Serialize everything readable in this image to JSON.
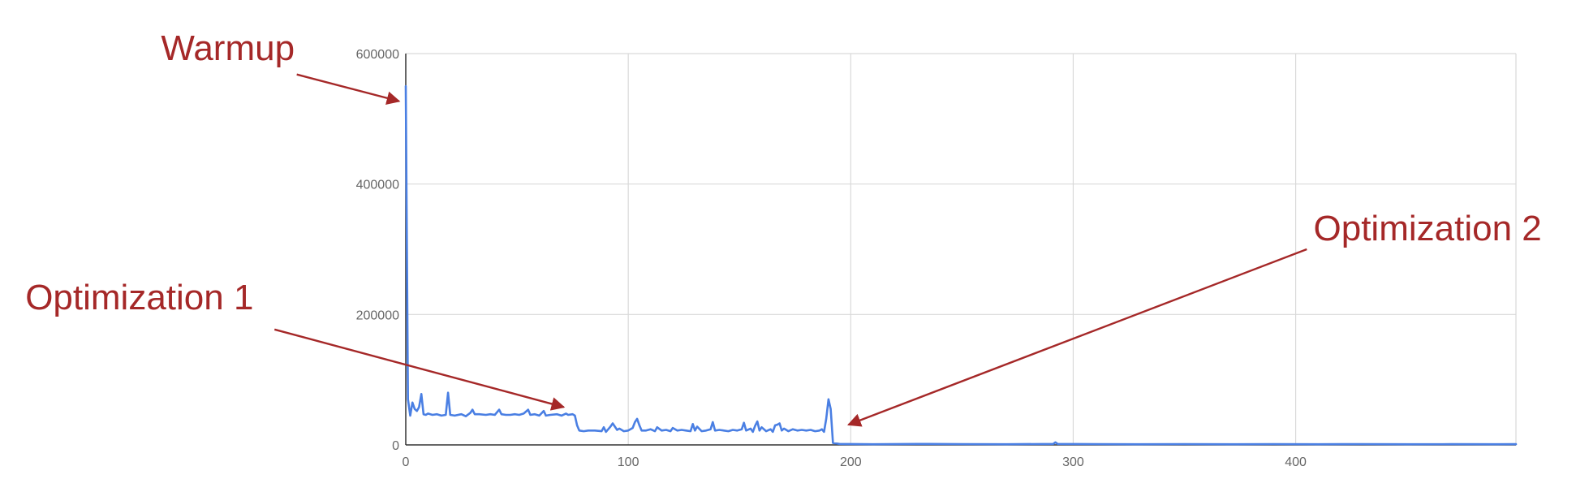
{
  "colors": {
    "series": "#4a7fe3",
    "grid": "#d9d9d9",
    "axis": "#333333",
    "tick_text": "#666666",
    "annotation": "#a52828"
  },
  "chart_data": {
    "type": "line",
    "title": "",
    "xlabel": "",
    "ylabel": "",
    "grid": true,
    "legend": "none",
    "xlim": [
      0,
      499
    ],
    "ylim": [
      0,
      600000
    ],
    "x_ticks": [
      "0",
      "100",
      "200",
      "300",
      "400"
    ],
    "y_ticks": [
      "0",
      "200000",
      "400000",
      "600000"
    ],
    "series": [
      {
        "points": [
          [
            0,
            550000
          ],
          [
            1,
            70000
          ],
          [
            2,
            45000
          ],
          [
            3,
            65000
          ],
          [
            4,
            55000
          ],
          [
            5,
            52000
          ],
          [
            6,
            58000
          ],
          [
            7,
            78000
          ],
          [
            8,
            47000
          ],
          [
            9,
            46000
          ],
          [
            10,
            48000
          ],
          [
            12,
            46000
          ],
          [
            14,
            47000
          ],
          [
            16,
            45000
          ],
          [
            18,
            46000
          ],
          [
            19,
            80000
          ],
          [
            20,
            46000
          ],
          [
            22,
            45000
          ],
          [
            25,
            47000
          ],
          [
            27,
            44000
          ],
          [
            29,
            49000
          ],
          [
            30,
            54000
          ],
          [
            31,
            47000
          ],
          [
            33,
            47000
          ],
          [
            36,
            46000
          ],
          [
            38,
            47000
          ],
          [
            40,
            46000
          ],
          [
            42,
            54000
          ],
          [
            43,
            47000
          ],
          [
            45,
            46000
          ],
          [
            47,
            46000
          ],
          [
            49,
            47000
          ],
          [
            51,
            46000
          ],
          [
            53,
            48000
          ],
          [
            55,
            54000
          ],
          [
            56,
            46000
          ],
          [
            58,
            47000
          ],
          [
            60,
            45000
          ],
          [
            62,
            52000
          ],
          [
            63,
            45000
          ],
          [
            65,
            46000
          ],
          [
            68,
            47000
          ],
          [
            70,
            45000
          ],
          [
            72,
            48000
          ],
          [
            73,
            46000
          ],
          [
            75,
            47000
          ],
          [
            76,
            45000
          ],
          [
            77,
            30000
          ],
          [
            78,
            22000
          ],
          [
            80,
            21000
          ],
          [
            82,
            22000
          ],
          [
            85,
            22000
          ],
          [
            88,
            21000
          ],
          [
            89,
            27000
          ],
          [
            90,
            20000
          ],
          [
            91,
            24000
          ],
          [
            92,
            28000
          ],
          [
            93,
            33000
          ],
          [
            95,
            23000
          ],
          [
            96,
            25000
          ],
          [
            98,
            21000
          ],
          [
            100,
            22000
          ],
          [
            102,
            26000
          ],
          [
            103,
            35000
          ],
          [
            104,
            40000
          ],
          [
            105,
            30000
          ],
          [
            106,
            22000
          ],
          [
            108,
            22000
          ],
          [
            110,
            24000
          ],
          [
            112,
            21000
          ],
          [
            113,
            27000
          ],
          [
            115,
            22000
          ],
          [
            117,
            23000
          ],
          [
            119,
            21000
          ],
          [
            120,
            26000
          ],
          [
            122,
            22000
          ],
          [
            124,
            23000
          ],
          [
            126,
            22000
          ],
          [
            128,
            21000
          ],
          [
            129,
            32000
          ],
          [
            130,
            22000
          ],
          [
            131,
            28000
          ],
          [
            133,
            21000
          ],
          [
            135,
            22000
          ],
          [
            137,
            24000
          ],
          [
            138,
            35000
          ],
          [
            139,
            22000
          ],
          [
            141,
            23000
          ],
          [
            143,
            22000
          ],
          [
            145,
            21000
          ],
          [
            147,
            23000
          ],
          [
            149,
            22000
          ],
          [
            151,
            24000
          ],
          [
            152,
            34000
          ],
          [
            153,
            22000
          ],
          [
            155,
            25000
          ],
          [
            156,
            20000
          ],
          [
            157,
            29000
          ],
          [
            158,
            36000
          ],
          [
            159,
            22000
          ],
          [
            160,
            27000
          ],
          [
            162,
            21000
          ],
          [
            164,
            24000
          ],
          [
            165,
            20000
          ],
          [
            166,
            30000
          ],
          [
            167,
            31000
          ],
          [
            168,
            33000
          ],
          [
            169,
            22000
          ],
          [
            170,
            25000
          ],
          [
            172,
            21000
          ],
          [
            174,
            24000
          ],
          [
            176,
            22000
          ],
          [
            178,
            23000
          ],
          [
            180,
            22000
          ],
          [
            182,
            23000
          ],
          [
            184,
            21000
          ],
          [
            186,
            22000
          ],
          [
            187,
            24000
          ],
          [
            188,
            20000
          ],
          [
            189,
            40000
          ],
          [
            190,
            70000
          ],
          [
            191,
            55000
          ],
          [
            192,
            3000
          ],
          [
            195,
            1500
          ],
          [
            210,
            1000
          ],
          [
            230,
            1500
          ],
          [
            250,
            1200
          ],
          [
            270,
            1000
          ],
          [
            291,
            1500
          ],
          [
            292,
            4000
          ],
          [
            293,
            1500
          ],
          [
            310,
            1200
          ],
          [
            330,
            1000
          ],
          [
            350,
            1300
          ],
          [
            370,
            1000
          ],
          [
            390,
            1200
          ],
          [
            410,
            1000
          ],
          [
            430,
            1200
          ],
          [
            450,
            1000
          ],
          [
            470,
            1100
          ],
          [
            490,
            1000
          ],
          [
            499,
            1100
          ]
        ]
      }
    ]
  },
  "annotations": [
    {
      "id": "warmup",
      "label": "Warmup",
      "anchor": "start",
      "label_at": [
        -110,
        590000
      ],
      "arrow_from": [
        -49,
        568000
      ],
      "arrow_to": [
        -3,
        527000
      ]
    },
    {
      "id": "optimization-1",
      "label": "Optimization 1",
      "anchor": "start",
      "label_at": [
        -171,
        208000
      ],
      "arrow_from": [
        -59,
        177000
      ],
      "arrow_to": [
        71,
        58000
      ]
    },
    {
      "id": "optimization-2",
      "label": "Optimization 2",
      "anchor": "start",
      "label_at": [
        408,
        314000
      ],
      "arrow_from": [
        405,
        300000
      ],
      "arrow_to": [
        199,
        31000
      ]
    }
  ]
}
